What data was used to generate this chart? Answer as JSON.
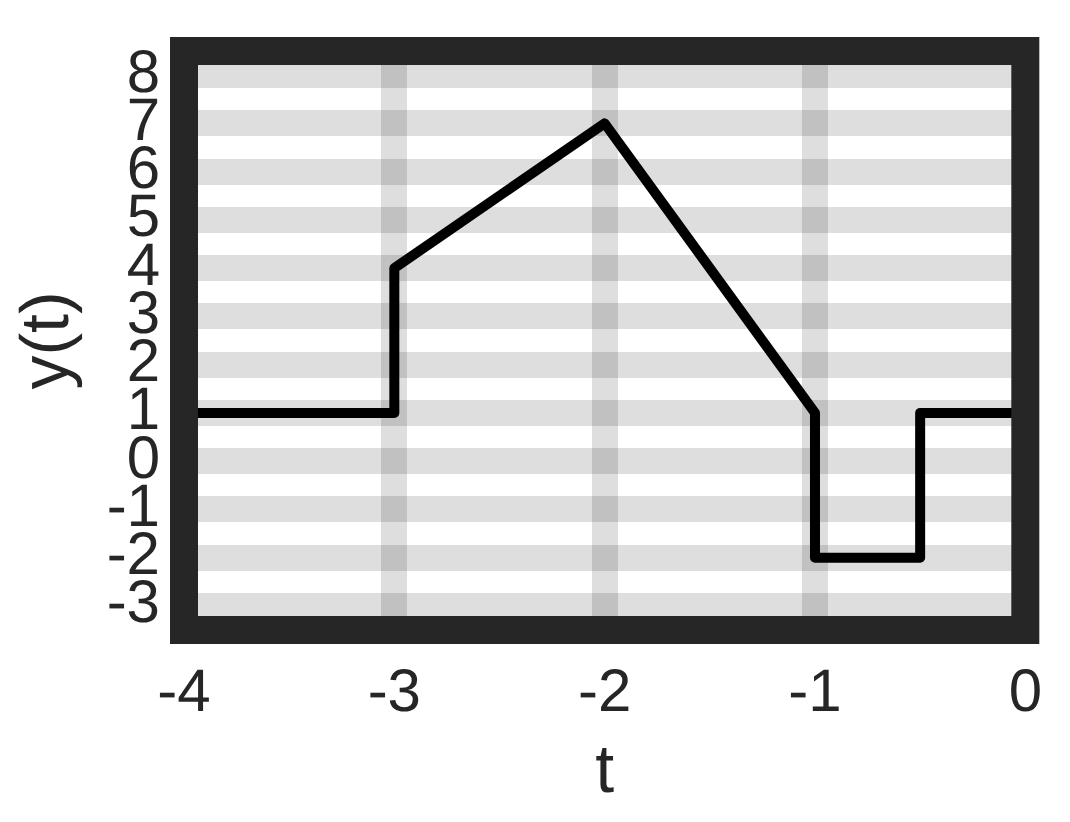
{
  "chart_data": {
    "type": "line",
    "xlabel": "t",
    "ylabel": "y(t)",
    "x": [
      -4,
      -3,
      -3,
      -2,
      -1,
      -1,
      -0.5,
      -0.5,
      0
    ],
    "series": [
      {
        "color": "#000000",
        "values": [
          1,
          1,
          4,
          7,
          1,
          -2,
          -2,
          1,
          1
        ]
      }
    ],
    "xlim": [
      -4,
      0
    ],
    "xticks": [
      -4,
      -3,
      -2,
      -1,
      0
    ],
    "ylim": [
      -3.5,
      8.5
    ],
    "yticks": [
      -3,
      -2,
      -1,
      0,
      1,
      2,
      3,
      4,
      5,
      6,
      7,
      8
    ],
    "grid": true,
    "legend": false,
    "marker": "none",
    "line_style": "solid"
  }
}
